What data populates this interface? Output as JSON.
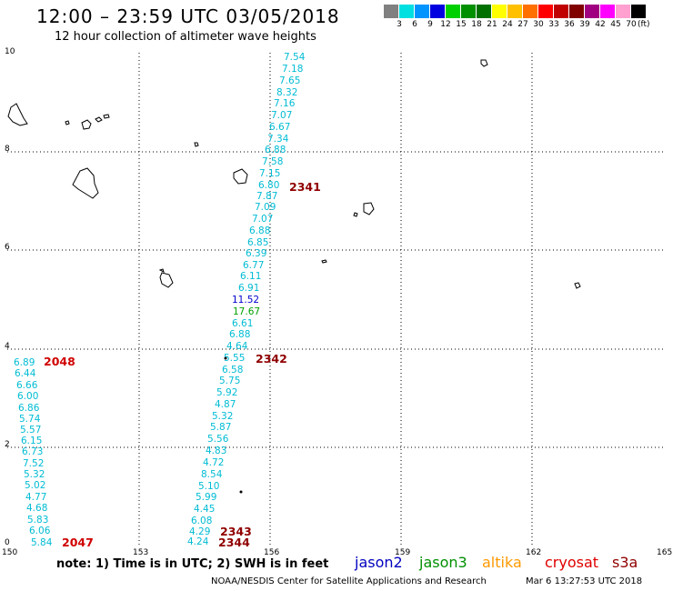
{
  "header": {
    "title": "12:00 – 23:59 UTC 03/05/2018",
    "subtitle": "12 hour collection of altimeter wave heights"
  },
  "scale": {
    "labels": [
      "3",
      "6",
      "9",
      "12",
      "15",
      "18",
      "21",
      "24",
      "27",
      "30",
      "33",
      "36",
      "39",
      "42",
      "45",
      "70"
    ],
    "unit": "(ft)",
    "colors": [
      "#808080",
      "#00e0e0",
      "#0094ff",
      "#0000e0",
      "#00d000",
      "#009000",
      "#007000",
      "#ffff00",
      "#ffc000",
      "#ff7000",
      "#ff0000",
      "#c00000",
      "#800000",
      "#a00080",
      "#ff00ff",
      "#ffa0d0",
      "#000000"
    ]
  },
  "axes": {
    "x_ticks": [
      "150",
      "153",
      "156",
      "159",
      "162",
      "165"
    ],
    "y_ticks": [
      "0",
      "2",
      "4",
      "6",
      "8",
      "10"
    ]
  },
  "tracks": [
    {
      "label": "2341",
      "color": "#900000"
    },
    {
      "label": "2048",
      "color": "#d00000"
    },
    {
      "label": "2342",
      "color": "#900000"
    },
    {
      "label": "2343",
      "color": "#900000"
    },
    {
      "label": "2344",
      "color": "#900000"
    },
    {
      "label": "2047",
      "color": "#d00000"
    }
  ],
  "observations": [
    {
      "v": "7.54",
      "c": "#00bcd4"
    },
    {
      "v": "7.18",
      "c": "#00bcd4"
    },
    {
      "v": "7.65",
      "c": "#00bcd4"
    },
    {
      "v": "8.32",
      "c": "#00bcd4"
    },
    {
      "v": "7.16",
      "c": "#00bcd4"
    },
    {
      "v": "7.07",
      "c": "#00bcd4"
    },
    {
      "v": "6.67",
      "c": "#00bcd4"
    },
    {
      "v": "7.34",
      "c": "#00bcd4"
    },
    {
      "v": "6.88",
      "c": "#00bcd4"
    },
    {
      "v": "7.58",
      "c": "#00bcd4"
    },
    {
      "v": "7.15",
      "c": "#00bcd4"
    },
    {
      "v": "6.80",
      "c": "#00bcd4"
    },
    {
      "v": "7.87",
      "c": "#00bcd4"
    },
    {
      "v": "7.09",
      "c": "#00bcd4"
    },
    {
      "v": "7.07",
      "c": "#00bcd4"
    },
    {
      "v": "6.88",
      "c": "#00bcd4"
    },
    {
      "v": "6.85",
      "c": "#00bcd4"
    },
    {
      "v": "6.39",
      "c": "#00bcd4"
    },
    {
      "v": "6.77",
      "c": "#00bcd4"
    },
    {
      "v": "6.11",
      "c": "#00bcd4"
    },
    {
      "v": "6.91",
      "c": "#00bcd4"
    },
    {
      "v": "11.52",
      "c": "#0000d0"
    },
    {
      "v": "17.67",
      "c": "#00a000"
    },
    {
      "v": "6.61",
      "c": "#00bcd4"
    },
    {
      "v": "6.88",
      "c": "#00bcd4"
    },
    {
      "v": "4.64",
      "c": "#00bcd4"
    },
    {
      "v": "5.55",
      "c": "#00bcd4"
    },
    {
      "v": "6.58",
      "c": "#00bcd4"
    },
    {
      "v": "5.75",
      "c": "#00bcd4"
    },
    {
      "v": "5.92",
      "c": "#00bcd4"
    },
    {
      "v": "4.87",
      "c": "#00bcd4"
    },
    {
      "v": "5.32",
      "c": "#00bcd4"
    },
    {
      "v": "5.87",
      "c": "#00bcd4"
    },
    {
      "v": "5.56",
      "c": "#00bcd4"
    },
    {
      "v": "4.83",
      "c": "#00bcd4"
    },
    {
      "v": "4.72",
      "c": "#00bcd4"
    },
    {
      "v": "8.54",
      "c": "#00bcd4"
    },
    {
      "v": "5.10",
      "c": "#00bcd4"
    },
    {
      "v": "5.99",
      "c": "#00bcd4"
    },
    {
      "v": "4.45",
      "c": "#00bcd4"
    },
    {
      "v": "6.08",
      "c": "#00bcd4"
    },
    {
      "v": "4.29",
      "c": "#00bcd4"
    },
    {
      "v": "4.24",
      "c": "#00bcd4"
    },
    {
      "v": "6.89",
      "c": "#00bcd4"
    },
    {
      "v": "6.44",
      "c": "#00bcd4"
    },
    {
      "v": "6.66",
      "c": "#00bcd4"
    },
    {
      "v": "6.00",
      "c": "#00bcd4"
    },
    {
      "v": "6.86",
      "c": "#00bcd4"
    },
    {
      "v": "5.74",
      "c": "#00bcd4"
    },
    {
      "v": "5.57",
      "c": "#00bcd4"
    },
    {
      "v": "6.15",
      "c": "#00bcd4"
    },
    {
      "v": "6.73",
      "c": "#00bcd4"
    },
    {
      "v": "7.52",
      "c": "#00bcd4"
    },
    {
      "v": "5.32",
      "c": "#00bcd4"
    },
    {
      "v": "5.02",
      "c": "#00bcd4"
    },
    {
      "v": "4.77",
      "c": "#00bcd4"
    },
    {
      "v": "4.68",
      "c": "#00bcd4"
    },
    {
      "v": "5.83",
      "c": "#00bcd4"
    },
    {
      "v": "6.06",
      "c": "#00bcd4"
    },
    {
      "v": "5.84",
      "c": "#00bcd4"
    }
  ],
  "footer": {
    "note": "note:  1) Time is in UTC;  2) SWH is in feet",
    "satellites": [
      {
        "name": "jason2",
        "color": "#0000c0"
      },
      {
        "name": "jason3",
        "color": "#009000"
      },
      {
        "name": "altika",
        "color": "#ff9900"
      },
      {
        "name": "cryosat",
        "color": "#e00000"
      },
      {
        "name": "s3a",
        "color": "#900000"
      }
    ],
    "credit": "NOAA/NESDIS Center for Satellite Applications and Research",
    "timestamp": "Mar  6 13:27:53 UTC 2018"
  }
}
